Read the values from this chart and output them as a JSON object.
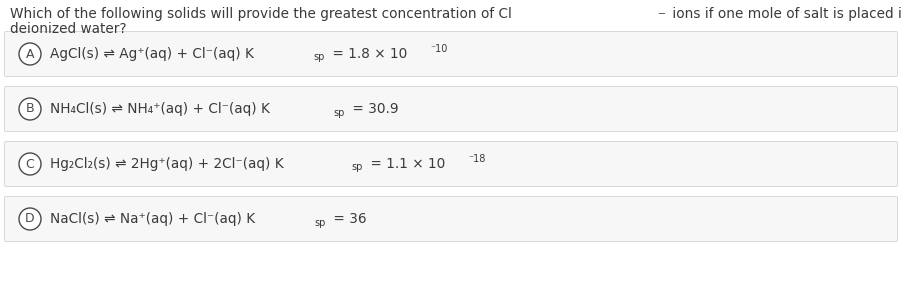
{
  "bg_color": "#ffffff",
  "text_color": "#3a3a3a",
  "circle_color": "#4a4a4a",
  "box_color": "#f7f7f7",
  "box_edge_color": "#d8d8d8",
  "font_size_question": 9.8,
  "font_size_option": 9.8,
  "font_size_subscript": 7.0,
  "font_size_superscript": 7.0,
  "fig_width": 9.02,
  "fig_height": 2.92,
  "q_line1": "Which of the following solids will provide the greatest concentration of Cl",
  "q_line1_sup": "⁻",
  "q_line1_end": " ions if one mole of salt is placed in one liter of",
  "q_line2": "deionized water?",
  "options": [
    {
      "letter": "A",
      "main_eq": "AgCl(s) ⇌ Ag⁺(aq) + Cl⁻(aq) K",
      "ksp_val": " = 1.8 × 10",
      "exp": "⁻10",
      "has_exp": true
    },
    {
      "letter": "B",
      "main_eq": "NH₄Cl(s) ⇌ NH₄⁺(aq) + Cl⁻(aq) K",
      "ksp_val": " = 30.9",
      "exp": "",
      "has_exp": false
    },
    {
      "letter": "C",
      "main_eq": "Hg₂Cl₂(s) ⇌ 2Hg⁺(aq) + 2Cl⁻(aq) K",
      "ksp_val": " = 1.1 × 10",
      "exp": "⁻18",
      "has_exp": true
    },
    {
      "letter": "D",
      "main_eq": "NaCl(s) ⇌ Na⁺(aq) + Cl⁻(aq) K",
      "ksp_val": " = 36",
      "exp": "",
      "has_exp": false
    }
  ]
}
